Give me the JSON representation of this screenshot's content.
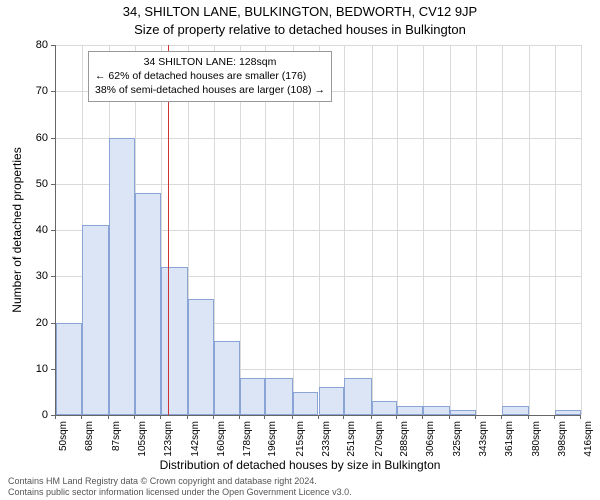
{
  "title_main": "34, SHILTON LANE, BULKINGTON, BEDWORTH, CV12 9JP",
  "title_sub": "Size of property relative to detached houses in Bulkington",
  "y_axis_label": "Number of detached properties",
  "x_axis_label": "Distribution of detached houses by size in Bulkington",
  "footer_line1": "Contains HM Land Registry data © Crown copyright and database right 2024.",
  "footer_line2": "Contains public sector information licensed under the Open Government Licence v3.0.",
  "chart": {
    "type": "histogram",
    "ylim": [
      0,
      80
    ],
    "ytick_step": 10,
    "x_tick_suffix": "sqm",
    "bar_fill": "#dbe5f5",
    "bar_stroke": "#8aa4d6",
    "grid_color": "#d9d9d9",
    "background_color": "#ffffff",
    "marker_color": "#cc3333",
    "marker_x_value": 128,
    "x_ticks": [
      50,
      68,
      87,
      105,
      123,
      142,
      160,
      178,
      196,
      215,
      233,
      251,
      270,
      288,
      306,
      325,
      343,
      361,
      380,
      398,
      416
    ],
    "bars": [
      {
        "x0": 50,
        "x1": 68,
        "value": 20
      },
      {
        "x0": 68,
        "x1": 87,
        "value": 41
      },
      {
        "x0": 87,
        "x1": 105,
        "value": 60
      },
      {
        "x0": 105,
        "x1": 123,
        "value": 48
      },
      {
        "x0": 123,
        "x1": 142,
        "value": 32
      },
      {
        "x0": 142,
        "x1": 160,
        "value": 25
      },
      {
        "x0": 160,
        "x1": 178,
        "value": 16
      },
      {
        "x0": 178,
        "x1": 196,
        "value": 8
      },
      {
        "x0": 196,
        "x1": 215,
        "value": 8
      },
      {
        "x0": 215,
        "x1": 233,
        "value": 5
      },
      {
        "x0": 233,
        "x1": 251,
        "value": 6
      },
      {
        "x0": 251,
        "x1": 270,
        "value": 8
      },
      {
        "x0": 270,
        "x1": 288,
        "value": 3
      },
      {
        "x0": 288,
        "x1": 306,
        "value": 2
      },
      {
        "x0": 306,
        "x1": 325,
        "value": 2
      },
      {
        "x0": 325,
        "x1": 343,
        "value": 1
      },
      {
        "x0": 343,
        "x1": 361,
        "value": 0
      },
      {
        "x0": 361,
        "x1": 380,
        "value": 2
      },
      {
        "x0": 380,
        "x1": 398,
        "value": 0
      },
      {
        "x0": 398,
        "x1": 416,
        "value": 1
      }
    ],
    "annotation": {
      "line1": "34 SHILTON LANE: 128sqm",
      "line2": "← 62% of detached houses are smaller (176)",
      "line3": "38% of semi-detached houses are larger (108) →"
    }
  }
}
